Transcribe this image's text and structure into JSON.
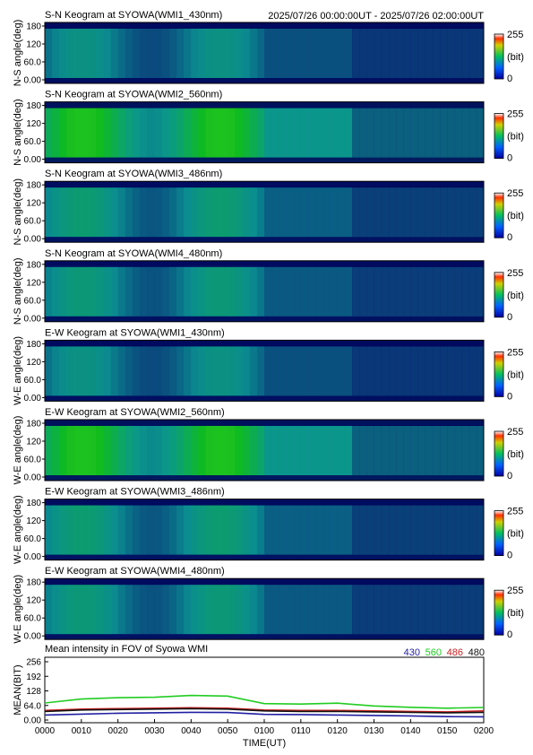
{
  "header": {
    "time_range": "2025/07/26 00:00:00UT - 2025/07/26 02:00:00UT"
  },
  "keograms": [
    {
      "title": "S-N Keogram at SYOWA(WMI1_430nm)",
      "ylabel": "N-S angle(deg)",
      "brightness": 0.32,
      "color_scale": {
        "max": "255",
        "unit": "(bit)",
        "min": "0"
      }
    },
    {
      "title": "S-N Keogram at SYOWA(WMI2_560nm)",
      "ylabel": "N-S angle(deg)",
      "brightness": 0.62,
      "color_scale": {
        "max": "255",
        "unit": "(bit)",
        "min": "0"
      }
    },
    {
      "title": "S-N Keogram at SYOWA(WMI3_486nm)",
      "ylabel": "N-S angle(deg)",
      "brightness": 0.38,
      "color_scale": {
        "max": "255",
        "unit": "(bit)",
        "min": "0"
      }
    },
    {
      "title": "S-N Keogram at SYOWA(WMI4_480nm)",
      "ylabel": "N-S angle(deg)",
      "brightness": 0.36,
      "color_scale": {
        "max": "255",
        "unit": "(bit)",
        "min": "0"
      }
    },
    {
      "title": "E-W Keogram at SYOWA(WMI1_430nm)",
      "ylabel": "W-E angle(deg)",
      "brightness": 0.32,
      "color_scale": {
        "max": "255",
        "unit": "(bit)",
        "min": "0"
      }
    },
    {
      "title": "E-W Keogram at SYOWA(WMI2_560nm)",
      "ylabel": "W-E angle(deg)",
      "brightness": 0.62,
      "color_scale": {
        "max": "255",
        "unit": "(bit)",
        "min": "0"
      }
    },
    {
      "title": "E-W Keogram at SYOWA(WMI3_486nm)",
      "ylabel": "W-E angle(deg)",
      "brightness": 0.38,
      "color_scale": {
        "max": "255",
        "unit": "(bit)",
        "min": "0"
      }
    },
    {
      "title": "E-W Keogram at SYOWA(WMI4_480nm)",
      "ylabel": "W-E angle(deg)",
      "brightness": 0.36,
      "color_scale": {
        "max": "255",
        "unit": "(bit)",
        "min": "0"
      }
    }
  ],
  "keogram_yticks": [
    "180",
    "120",
    "60.0",
    "0.00"
  ],
  "chart_data": {
    "type": "line",
    "title": "Mean intensity in FOV of Syowa WMI",
    "xlabel": "TIME(UT)",
    "ylabel": "MEAN(BIT)",
    "ylim": [
      0,
      256
    ],
    "yticks": [
      "256",
      "192",
      "128",
      "64.0",
      "0.00"
    ],
    "categories": [
      "0000",
      "0010",
      "0020",
      "0030",
      "0040",
      "0050",
      "0100",
      "0110",
      "0120",
      "0130",
      "0140",
      "0150",
      "0200"
    ],
    "series": [
      {
        "name": "430",
        "color": "#1f1fa0",
        "values": [
          22,
          26,
          30,
          32,
          34,
          33,
          25,
          24,
          22,
          20,
          18,
          15,
          14
        ]
      },
      {
        "name": "560",
        "color": "#22cc22",
        "values": [
          75,
          92,
          98,
          100,
          108,
          105,
          72,
          70,
          74,
          62,
          56,
          52,
          55
        ]
      },
      {
        "name": "486",
        "color": "#cc2222",
        "values": [
          42,
          48,
          50,
          52,
          54,
          52,
          44,
          42,
          42,
          40,
          38,
          36,
          40
        ]
      },
      {
        "name": "480",
        "color": "#111111",
        "values": [
          38,
          44,
          46,
          48,
          50,
          48,
          40,
          38,
          38,
          36,
          34,
          32,
          34
        ]
      }
    ]
  }
}
